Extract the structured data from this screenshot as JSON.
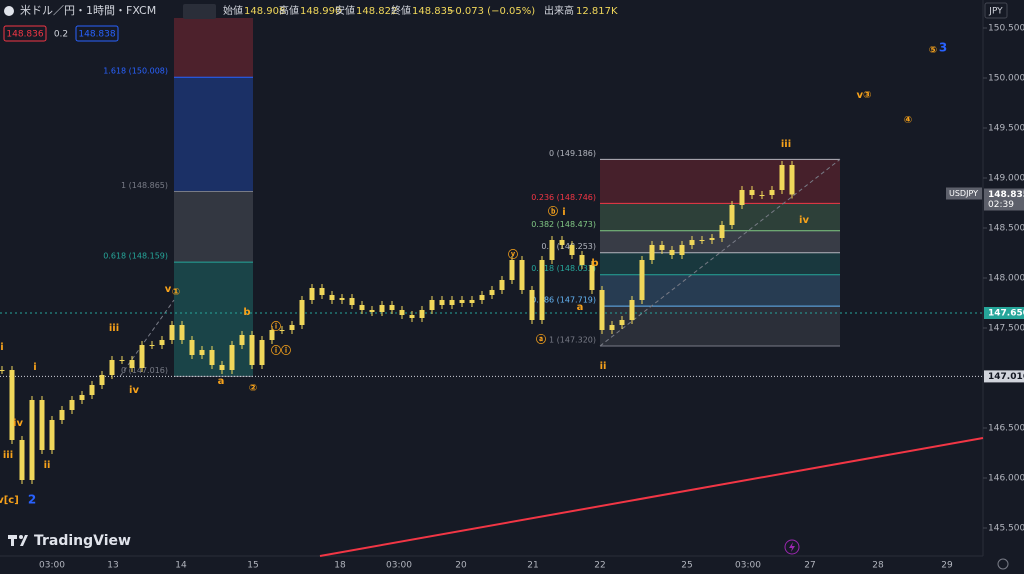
{
  "header": {
    "symbol": "米ドル／円・1時間・FXCM",
    "ohlc": [
      {
        "label": "始値",
        "value": "148.908"
      },
      {
        "label": "高値",
        "value": "148.990"
      },
      {
        "label": "安値",
        "value": "148.822"
      },
      {
        "label": "終値",
        "value": "148.835"
      }
    ],
    "change": "−0.073 (−0.05%)",
    "volume_label": "出来高",
    "volume": "12.817K"
  },
  "toolbar": {
    "sell": "148.836",
    "spread": "0.2",
    "buy": "148.838"
  },
  "currency": "JPY",
  "logo": "TradingView",
  "chart_data": {
    "type": "candlestick",
    "color": "#f0d75a",
    "values": [
      147.08,
      146.38,
      145.98,
      146.78,
      146.28,
      146.58,
      146.68,
      146.78,
      146.83,
      146.93,
      147.03,
      147.18,
      147.18,
      147.1,
      147.33,
      147.33,
      147.38,
      147.53,
      147.38,
      147.23,
      147.28,
      147.13,
      147.08,
      147.33,
      147.43,
      147.13,
      147.38,
      147.48,
      147.48,
      147.53,
      147.78,
      147.9,
      147.83,
      147.78,
      147.8,
      147.73,
      147.68,
      147.66,
      147.73,
      147.68,
      147.63,
      147.6,
      147.68,
      147.78,
      147.73,
      147.78,
      147.75,
      147.78,
      147.83,
      147.88,
      147.98,
      148.18,
      147.88,
      147.58,
      148.18,
      148.38,
      148.33,
      148.23,
      148.13,
      147.88,
      147.48,
      147.53,
      147.58,
      147.78,
      148.18,
      148.33,
      148.28,
      148.23,
      148.33,
      148.38,
      148.38,
      148.4,
      148.53,
      148.73,
      148.88,
      148.83,
      148.83,
      148.88,
      149.13,
      148.835
    ],
    "ylim": [
      145.22,
      150.78
    ],
    "yticks": [
      {
        "value": 150.5,
        "label": "150.500"
      },
      {
        "value": 150,
        "label": "150.000"
      },
      {
        "value": 149.5,
        "label": "149.500"
      },
      {
        "value": 149,
        "label": "149.000"
      },
      {
        "value": 148.5,
        "label": "148.500"
      },
      {
        "value": 148,
        "label": "148.000"
      },
      {
        "value": 147.5,
        "label": "147.500"
      },
      {
        "value": 146.5,
        "label": "146.500"
      },
      {
        "value": 146,
        "label": "146.000"
      },
      {
        "value": 145.5,
        "label": "145.500"
      }
    ],
    "xticks": [
      "03:00",
      "13",
      "14",
      "15",
      "18",
      "03:00",
      "20",
      "21",
      "22",
      "25",
      "03:00",
      "27",
      "28",
      "29"
    ],
    "price_tags": [
      {
        "name": "USDJPY",
        "value": 148.835,
        "label": "148.835",
        "countdown": "02:39",
        "color": "#5d606b"
      },
      {
        "value": 147.65,
        "label": "147.650",
        "color": "#26a69a"
      },
      {
        "value": 147.016,
        "label": "147.016",
        "color": "#d1d4dc"
      }
    ],
    "trendline": {
      "color": "#f23645",
      "values": [
        145.22,
        146.4
      ]
    },
    "fib_right": [
      {
        "value": 149.186,
        "label": "0 (149.186)",
        "color": "#b2b5be"
      },
      {
        "value": 148.746,
        "label": "0.236 (148.746)",
        "color": "#f23645"
      },
      {
        "value": 148.473,
        "label": "0.382 (148.473)",
        "color": "#81c784"
      },
      {
        "value": 148.253,
        "label": "0.5 (148.253)",
        "color": "#b2b5be"
      },
      {
        "value": 148.033,
        "label": "0.618 (148.033)",
        "color": "#26a69a"
      },
      {
        "value": 147.719,
        "label": "0.786 (147.719)",
        "color": "#64b5f6"
      },
      {
        "value": 147.32,
        "label": "1 (147.320)",
        "color": "#787b86"
      }
    ],
    "fib_left": [
      {
        "value": 150.008,
        "label": "1.618 (150.008)",
        "color": "#2962ff"
      },
      {
        "value": 148.865,
        "label": "1 (148.865)",
        "color": "#787b86"
      },
      {
        "value": 148.159,
        "label": "0.618 (148.159)",
        "color": "#26a69a"
      },
      {
        "value": 147.016,
        "label": "0 (147.016)",
        "color": "#787b86"
      }
    ],
    "annotations": [
      {
        "text": "i",
        "color": "#f7a21b"
      },
      {
        "text": "i",
        "color": "#f7a21b"
      },
      {
        "text": "iv",
        "color": "#f7a21b"
      },
      {
        "text": "iii",
        "color": "#f7a21b"
      },
      {
        "text": "ii",
        "color": "#f7a21b"
      },
      {
        "text": "v[c]",
        "color": "#f7a21b"
      },
      {
        "text": "2",
        "color": "#2962ff"
      },
      {
        "text": "iii",
        "color": "#f7a21b"
      },
      {
        "text": "iv",
        "color": "#f7a21b"
      },
      {
        "text": "v",
        "color": "#f7a21b"
      },
      {
        "text": "①",
        "color": "#f7a21b"
      },
      {
        "text": "a",
        "color": "#f7a21b"
      },
      {
        "text": "b",
        "color": "#f7a21b"
      },
      {
        "text": "②",
        "color": "#f7a21b"
      },
      {
        "text": "ⓘ",
        "color": "#f7a21b"
      },
      {
        "text": "ⓘⓘ",
        "color": "#f7a21b"
      },
      {
        "text": "ⓥ",
        "color": "#f7a21b"
      },
      {
        "text": "ⓐ",
        "color": "#f7a21b"
      },
      {
        "text": "ⓑ",
        "color": "#f7a21b"
      },
      {
        "text": "i",
        "color": "#f7a21b"
      },
      {
        "text": "b",
        "color": "#f7a21b"
      },
      {
        "text": "a",
        "color": "#f7a21b"
      },
      {
        "text": "ii",
        "color": "#f7a21b"
      },
      {
        "text": "iii",
        "color": "#f7a21b"
      },
      {
        "text": "iv",
        "color": "#f7a21b"
      },
      {
        "text": "v③",
        "color": "#f7a21b"
      },
      {
        "text": "④",
        "color": "#f7a21b"
      },
      {
        "text": "⑤",
        "color": "#f7a21b"
      },
      {
        "text": "3",
        "color": "#2962ff"
      }
    ]
  }
}
